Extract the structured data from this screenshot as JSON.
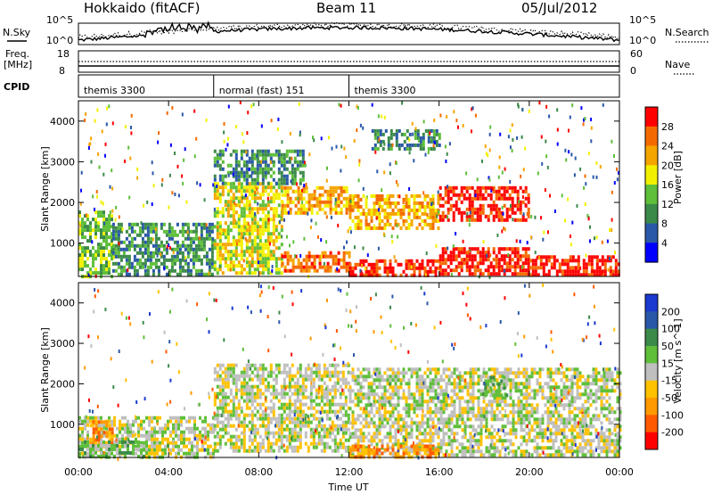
{
  "header": {
    "station": "Hokkaido (fitACF)",
    "beam": "Beam 11",
    "date": "05/Jul/2012"
  },
  "panels": {
    "nsky": {
      "label": "N.Sky",
      "right_label": "N.Search",
      "left_ticks": [
        "10^5",
        "10^0"
      ],
      "right_ticks": [
        "10^5",
        "10^0"
      ]
    },
    "freq": {
      "label_line1": "Freq.",
      "label_line2": "[MHz]",
      "right_label": "Nave",
      "left_ticks": [
        "18",
        "8"
      ],
      "right_ticks": [
        "60",
        "0"
      ]
    },
    "cpid": {
      "label": "CPID",
      "segments": [
        {
          "name": "themis 3300",
          "start_hour": 0,
          "end_hour": 6
        },
        {
          "name": "normal (fast) 151",
          "start_hour": 6,
          "end_hour": 12
        },
        {
          "name": "themis 3300",
          "start_hour": 12,
          "end_hour": 24
        }
      ]
    }
  },
  "colors": {
    "power": [
      "#0000ff",
      "#2a58a8",
      "#3c8a4a",
      "#5fbf3a",
      "#f2f000",
      "#f5a500",
      "#f56a00",
      "#ff0000"
    ],
    "velocity": [
      "#ff0000",
      "#ff5a00",
      "#ff9a00",
      "#ffc200",
      "#bfbfbf",
      "#5fbf3a",
      "#3c8a4a",
      "#2a58a8",
      "#1a3ad0"
    ]
  },
  "chart_data": [
    {
      "type": "heatmap",
      "name": "power",
      "ylabel": "Slant Range [km]",
      "colorbar_label": "Power [dB]",
      "colorbar_ticks": [
        "4",
        "8",
        "12",
        "16",
        "20",
        "24",
        "28"
      ],
      "ylim": [
        180,
        4500
      ],
      "y_ticks": [
        "1000",
        "2000",
        "3000",
        "4000"
      ],
      "xlim": [
        0,
        24
      ],
      "regions": [
        {
          "x": [
            0,
            1.5
          ],
          "y": [
            200,
            1800
          ],
          "level": 3
        },
        {
          "x": [
            1.5,
            6
          ],
          "y": [
            200,
            1500
          ],
          "level": 2
        },
        {
          "x": [
            6,
            9
          ],
          "y": [
            300,
            2500
          ],
          "level": 4
        },
        {
          "x": [
            9,
            12
          ],
          "y": [
            300,
            800
          ],
          "level": 6
        },
        {
          "x": [
            9,
            12
          ],
          "y": [
            1700,
            2400
          ],
          "level": 5
        },
        {
          "x": [
            12,
            16
          ],
          "y": [
            200,
            600
          ],
          "level": 7
        },
        {
          "x": [
            12,
            16
          ],
          "y": [
            1400,
            2200
          ],
          "level": 5
        },
        {
          "x": [
            16,
            20
          ],
          "y": [
            200,
            900
          ],
          "level": 7
        },
        {
          "x": [
            16,
            20
          ],
          "y": [
            1600,
            2400
          ],
          "level": 7
        },
        {
          "x": [
            20,
            24
          ],
          "y": [
            200,
            700
          ],
          "level": 7
        },
        {
          "x": [
            6,
            10
          ],
          "y": [
            2500,
            3300
          ],
          "level": 2
        },
        {
          "x": [
            13,
            16
          ],
          "y": [
            3300,
            3800
          ],
          "level": 2
        }
      ]
    },
    {
      "type": "heatmap",
      "name": "velocity",
      "ylabel": "Slant Range [km]",
      "xlabel": "Time UT",
      "colorbar_label": "Velocity [m s^-1]",
      "colorbar_ticks": [
        "200",
        "100",
        "50",
        "15",
        "-15",
        "-50",
        "-100",
        "-200"
      ],
      "ylim": [
        180,
        4500
      ],
      "y_ticks": [
        "1000",
        "2000",
        "3000",
        "4000"
      ],
      "x_ticks": [
        "00:00",
        "04:00",
        "08:00",
        "12:00",
        "16:00",
        "20:00",
        "00:00"
      ],
      "xlim": [
        0,
        24
      ],
      "regions": [
        {
          "x": [
            0,
            6
          ],
          "y": [
            200,
            1200
          ],
          "level": 4
        },
        {
          "x": [
            6,
            12
          ],
          "y": [
            300,
            2500
          ],
          "level": 4
        },
        {
          "x": [
            12,
            24
          ],
          "y": [
            200,
            2400
          ],
          "level": 4
        },
        {
          "x": [
            18,
            19
          ],
          "y": [
            1700,
            2200
          ],
          "level": 5
        },
        {
          "x": [
            12,
            16
          ],
          "y": [
            200,
            500
          ],
          "level": 2
        },
        {
          "x": [
            0.5,
            1.5
          ],
          "y": [
            500,
            1100
          ],
          "level": 2
        },
        {
          "x": [
            0,
            3
          ],
          "y": [
            200,
            600
          ],
          "level": 5
        }
      ]
    }
  ]
}
